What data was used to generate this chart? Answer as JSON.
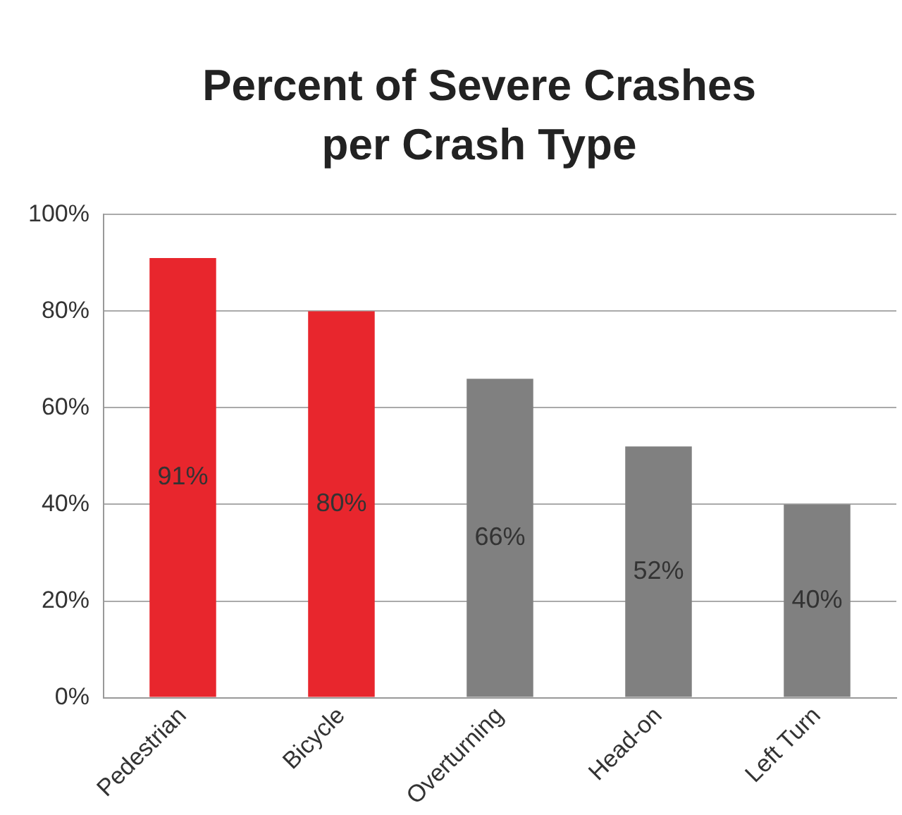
{
  "chart_data": {
    "type": "bar",
    "title": "Percent of Severe Crashes per Crash Type",
    "categories": [
      "Pedestrian",
      "Bicycle",
      "Overturning",
      "Head-on",
      "Left Turn"
    ],
    "values": [
      91,
      80,
      66,
      52,
      40
    ],
    "colors": [
      "#e8262d",
      "#e8262d",
      "#808080",
      "#808080",
      "#808080"
    ],
    "value_labels": [
      "91%",
      "80%",
      "66%",
      "52%",
      "40%"
    ],
    "ylim": [
      0,
      100
    ],
    "yticks": [
      {
        "value": 0,
        "label": "0%"
      },
      {
        "value": 20,
        "label": "20%"
      },
      {
        "value": 40,
        "label": "40%"
      },
      {
        "value": 60,
        "label": "60%"
      },
      {
        "value": 80,
        "label": "80%"
      },
      {
        "value": 100,
        "label": "100%"
      }
    ],
    "grid": "y"
  }
}
